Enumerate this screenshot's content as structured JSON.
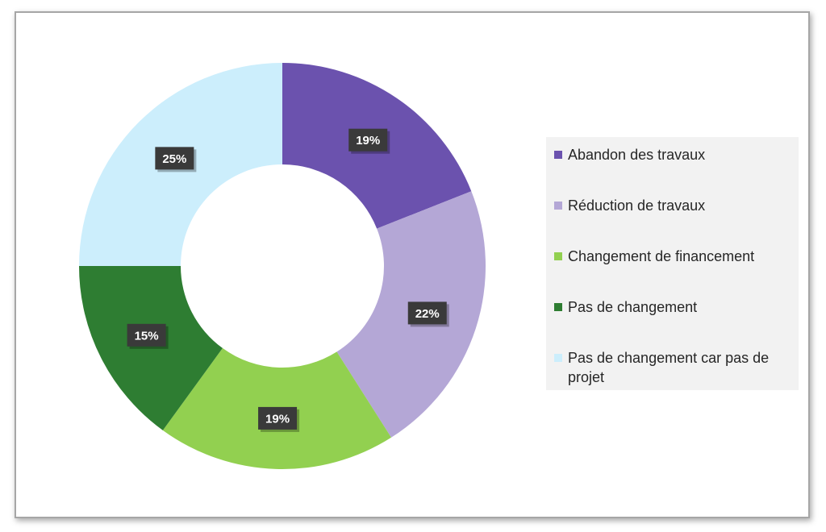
{
  "chart_data": {
    "type": "pie",
    "variant": "donut",
    "title": "",
    "categories": [
      "Abandon des travaux",
      "Réduction de travaux",
      "Changement de financement",
      "Pas de changement",
      "Pas de changement car pas de projet"
    ],
    "values": [
      19,
      22,
      19,
      15,
      25
    ],
    "labels": [
      "19%",
      "22%",
      "19%",
      "15%",
      "25%"
    ],
    "colors": [
      "#6b52ae",
      "#b4a7d6",
      "#92d050",
      "#2e7d32",
      "#cceefc"
    ],
    "legend_position": "right"
  },
  "colors": {
    "label_background": "#3a3a3a",
    "legend_background": "#f2f2f2",
    "legend_text": "#262626",
    "frame_border": "#a6a6a6"
  }
}
